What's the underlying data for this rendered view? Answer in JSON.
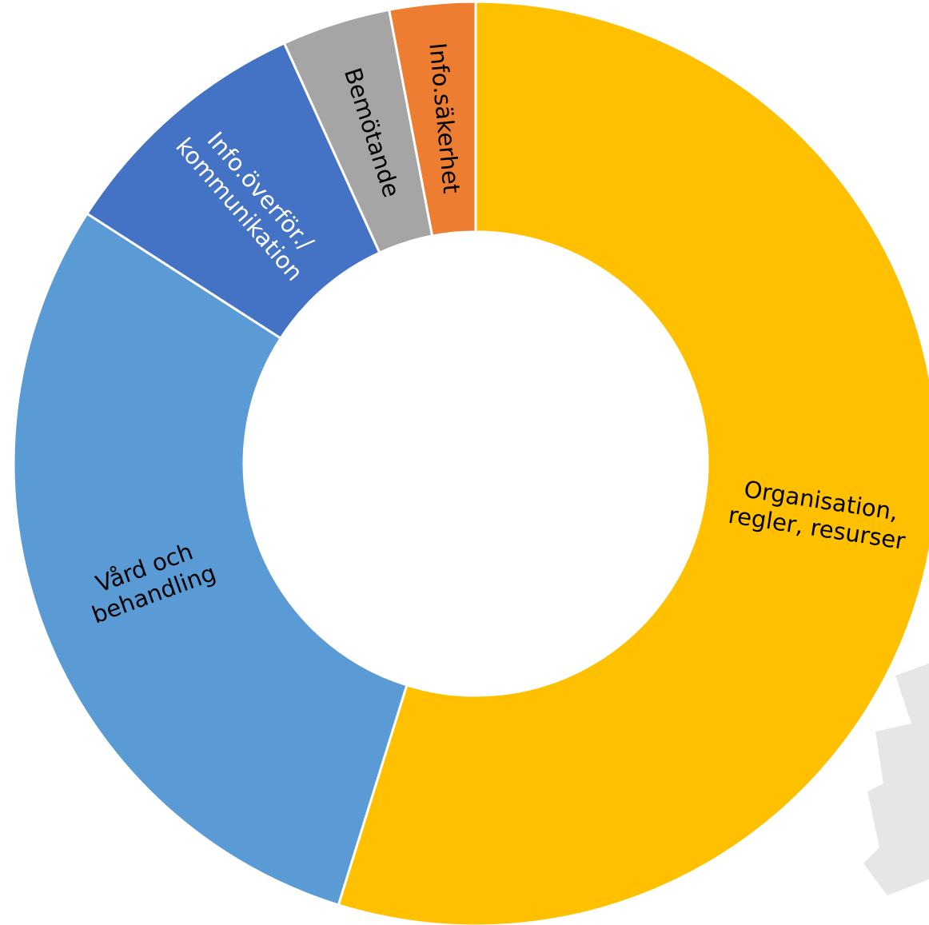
{
  "chart_data": {
    "type": "donut",
    "categories": [
      "Organisation,\nregler, resurser",
      "Vård och\nbehandling",
      "Info.överför./\nkommunikation",
      "Bemötande",
      "Info.säkerhet"
    ],
    "values": [
      54.8,
      29.3,
      9.1,
      3.8,
      3.0
    ],
    "colors": [
      "#FFC000",
      "#5B9BD5",
      "#4472C4",
      "#A5A5A5",
      "#ED7D31"
    ],
    "label_colors": [
      "#000000",
      "#000000",
      "#FFFFFF",
      "#000000",
      "#000000"
    ]
  }
}
